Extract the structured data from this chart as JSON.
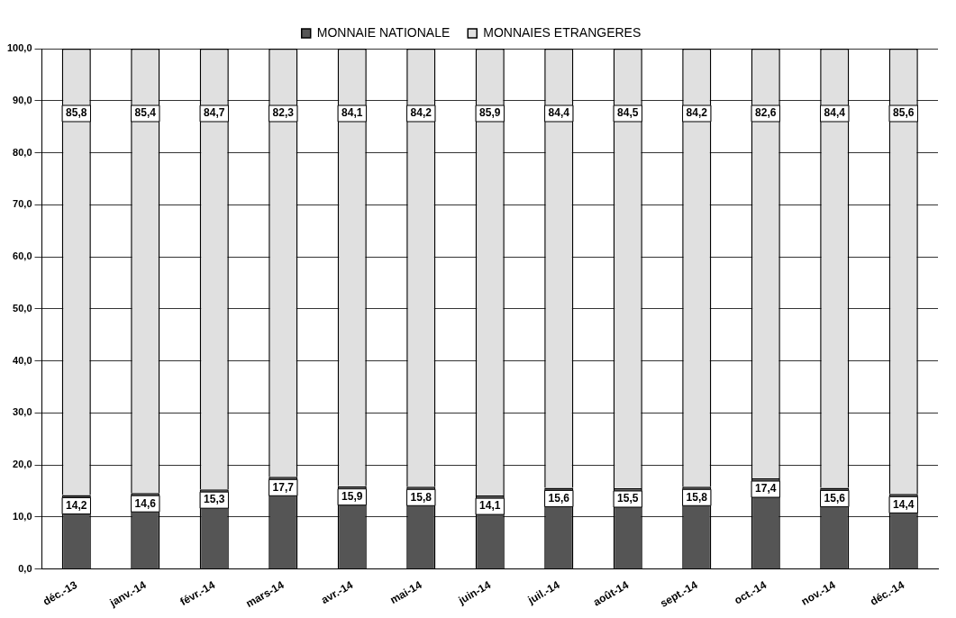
{
  "chart_data": {
    "type": "bar",
    "stacked": true,
    "grid": "y",
    "legend": "top",
    "categories": [
      "déc.-13",
      "janv.-14",
      "févr.-14",
      "mars-14",
      "avr.-14",
      "mai-14",
      "juin-14",
      "juil.-14",
      "août-14",
      "sept.-14",
      "oct.-14",
      "nov.-14",
      "déc.-14"
    ],
    "series": [
      {
        "name": "MONNAIE NATIONALE",
        "color": "#555555",
        "values": [
          14.2,
          14.6,
          15.3,
          17.7,
          15.9,
          15.8,
          14.1,
          15.6,
          15.5,
          15.8,
          17.4,
          15.6,
          14.4
        ],
        "value_labels": [
          "14,2",
          "14,6",
          "15,3",
          "17,7",
          "15,9",
          "15,8",
          "14,1",
          "15,6",
          "15,5",
          "15,8",
          "17,4",
          "15,6",
          "14,4"
        ]
      },
      {
        "name": "MONNAIES ETRANGERES",
        "color": "#e0e0e0",
        "values": [
          85.8,
          85.4,
          84.7,
          82.3,
          84.1,
          84.2,
          85.9,
          84.4,
          84.5,
          84.2,
          82.6,
          84.4,
          85.6
        ],
        "value_labels": [
          "85,8",
          "85,4",
          "84,7",
          "82,3",
          "84,1",
          "84,2",
          "85,9",
          "84,4",
          "84,5",
          "84,2",
          "82,6",
          "84,4",
          "85,6"
        ]
      }
    ],
    "ylim": [
      0,
      100
    ],
    "yticks": [
      {
        "value": 0,
        "label": "0,0"
      },
      {
        "value": 10,
        "label": "10,0"
      },
      {
        "value": 20,
        "label": "20,0"
      },
      {
        "value": 30,
        "label": "30,0"
      },
      {
        "value": 40,
        "label": "40,0"
      },
      {
        "value": 50,
        "label": "50,0"
      },
      {
        "value": 60,
        "label": "60,0"
      },
      {
        "value": 70,
        "label": "70,0"
      },
      {
        "value": 80,
        "label": "80,0"
      },
      {
        "value": 90,
        "label": "90,0"
      },
      {
        "value": 100,
        "label": "100,0"
      }
    ]
  }
}
